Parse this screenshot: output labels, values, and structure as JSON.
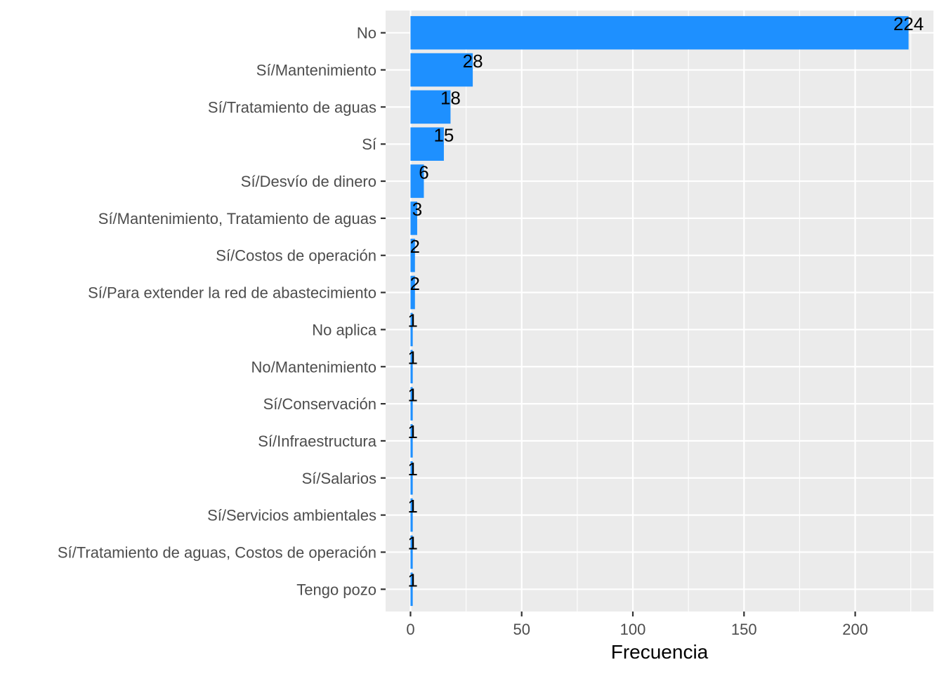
{
  "chart_data": {
    "type": "bar",
    "orientation": "horizontal",
    "categories": [
      "No",
      "Sí/Mantenimiento",
      "Sí/Tratamiento de aguas",
      "Sí",
      "Sí/Desvío de dinero",
      "Sí/Mantenimiento, Tratamiento de aguas",
      "Sí/Costos de operación",
      "Sí/Para extender la red de abastecimiento",
      "No aplica",
      "No/Mantenimiento",
      "Sí/Conservación",
      "Sí/Infraestructura",
      "Sí/Salarios",
      "Sí/Servicios ambientales",
      "Sí/Tratamiento de aguas, Costos de operación",
      "Tengo pozo"
    ],
    "values": [
      224,
      28,
      18,
      15,
      6,
      3,
      2,
      2,
      1,
      1,
      1,
      1,
      1,
      1,
      1,
      1
    ],
    "data_labels": [
      "224",
      "28",
      "18",
      "15",
      "6",
      "3",
      "2",
      "2",
      "1",
      "1",
      "1",
      "1",
      "1",
      "1",
      "1",
      "1"
    ],
    "title": "",
    "xlabel": "Frecuencia",
    "ylabel": "",
    "xlim": [
      -11.2,
      235.2
    ],
    "xticks": [
      0,
      50,
      100,
      150,
      200
    ],
    "xtick_labels": [
      "0",
      "50",
      "100",
      "150",
      "200"
    ],
    "grid": true,
    "legend": "none",
    "colors": {
      "bar": "#1E90FF",
      "panel": "#EBEBEB",
      "grid": "#FFFFFF",
      "text": "#4D4D4D",
      "label": "#000000"
    }
  }
}
